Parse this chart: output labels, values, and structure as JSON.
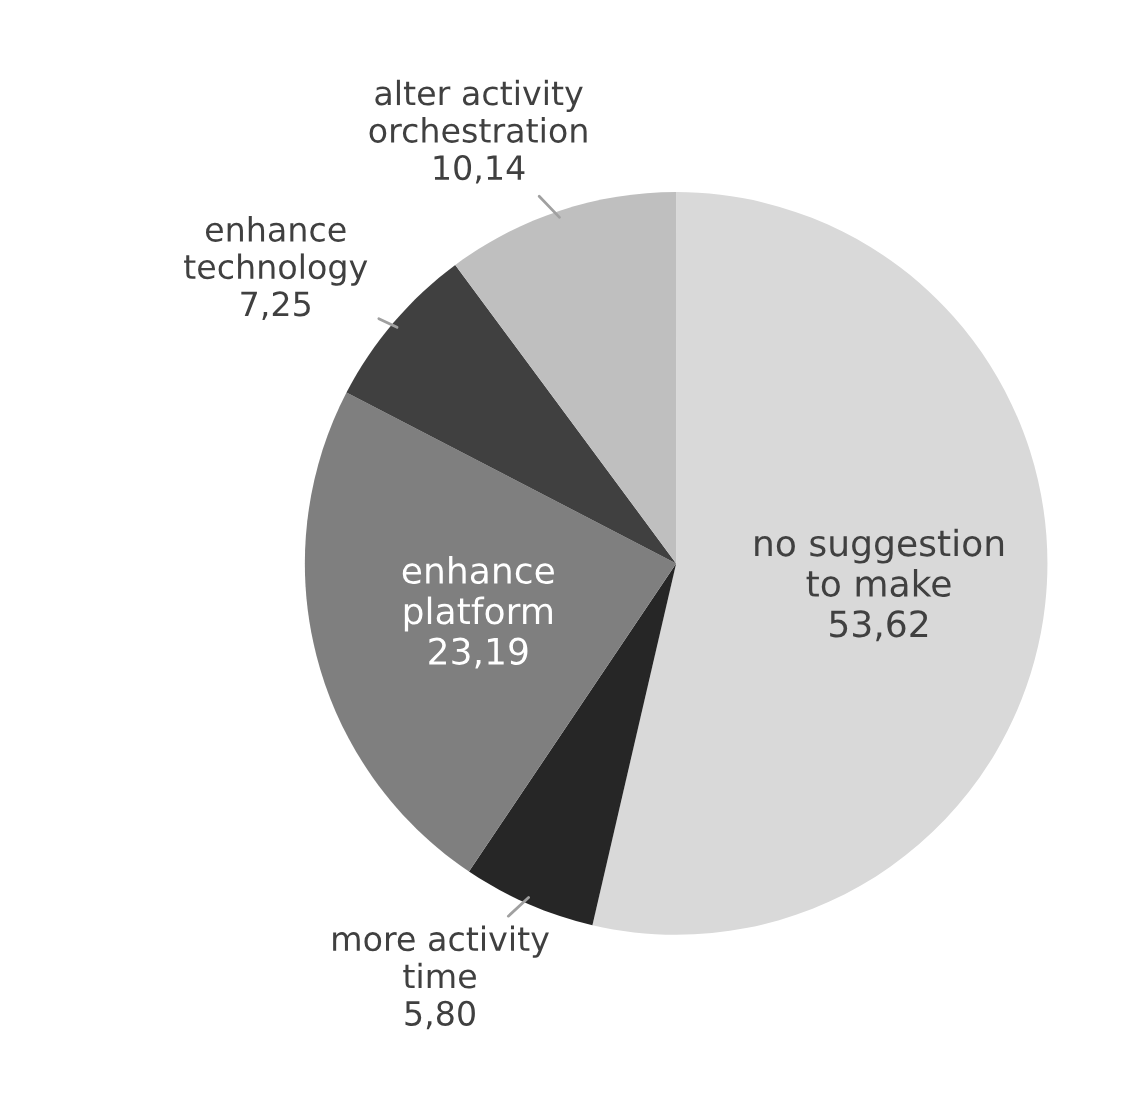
{
  "chart_data": {
    "type": "pie",
    "categories": [
      "no suggestion\nto make",
      "more activity\ntime",
      "enhance\nplatform",
      "enhance\ntechnology",
      "alter activity\norchestration"
    ],
    "values": [
      53.62,
      5.8,
      23.19,
      7.25,
      10.14
    ],
    "value_labels": [
      "53,62",
      "5,80",
      "23,19",
      "7,25",
      "10,14"
    ],
    "colors": [
      "#d9d9d9",
      "#262626",
      "#7f7f7f",
      "#404040",
      "#bfbfbf"
    ]
  }
}
